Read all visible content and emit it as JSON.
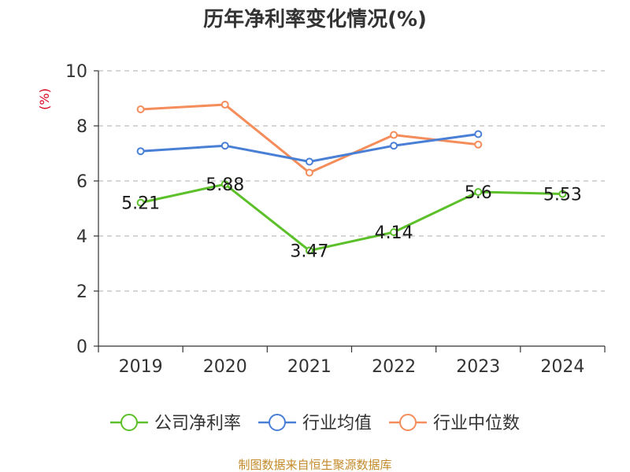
{
  "chart_data": {
    "type": "line",
    "title": "历年净利率变化情况(%)",
    "ylabel": "(%)",
    "xlabel": "",
    "categories": [
      "2019",
      "2020",
      "2021",
      "2022",
      "2023",
      "2024"
    ],
    "ylim": [
      0,
      10
    ],
    "yticks": [
      "0",
      "2",
      "4",
      "6",
      "8",
      "10"
    ],
    "grid": true,
    "legend_position": "bottom",
    "series": [
      {
        "name": "公司净利率",
        "color": "#5cc02a",
        "values": [
          5.21,
          5.88,
          3.47,
          4.14,
          5.6,
          5.53
        ],
        "labels": [
          "5.21",
          "5.88",
          "3.47",
          "4.14",
          "5.6",
          "5.53"
        ]
      },
      {
        "name": "行业均值",
        "color": "#4a7fd6",
        "values": [
          7.08,
          7.28,
          6.7,
          7.28,
          7.7,
          null
        ]
      },
      {
        "name": "行业中位数",
        "color": "#f58d5b",
        "values": [
          8.6,
          8.77,
          6.3,
          7.67,
          7.32,
          null
        ]
      }
    ],
    "source": "制图数据来自恒生聚源数据库"
  }
}
